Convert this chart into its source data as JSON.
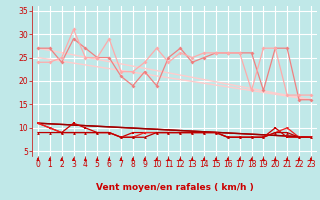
{
  "bg_color": "#c0e8e8",
  "grid_color": "#ffffff",
  "xlabel": "Vent moyen/en rafales ( km/h )",
  "xlim": [
    -0.5,
    23.5
  ],
  "ylim": [
    4,
    36
  ],
  "yticks": [
    5,
    10,
    15,
    20,
    25,
    30,
    35
  ],
  "xticks": [
    0,
    1,
    2,
    3,
    4,
    5,
    6,
    7,
    8,
    9,
    10,
    11,
    12,
    13,
    14,
    15,
    16,
    17,
    18,
    19,
    20,
    21,
    22,
    23
  ],
  "lines_light": [
    {
      "x": [
        0,
        1,
        2,
        3,
        4,
        5,
        6,
        7,
        8,
        9,
        10,
        11,
        12,
        13,
        14,
        15,
        16,
        17,
        18,
        19,
        20,
        21,
        22,
        23
      ],
      "y": [
        27,
        27,
        24,
        29,
        27,
        25,
        25,
        21,
        19,
        22,
        19,
        25,
        27,
        24,
        25,
        26,
        26,
        26,
        26,
        18,
        27,
        27,
        16,
        16
      ],
      "color": "#f08080",
      "lw": 0.9,
      "ms": 2.0
    },
    {
      "x": [
        0,
        1,
        2,
        3,
        4,
        5,
        6,
        7,
        8,
        9,
        10,
        11,
        12,
        13,
        14,
        15,
        16,
        17,
        18,
        19,
        20,
        21,
        22,
        23
      ],
      "y": [
        24,
        24,
        25,
        31,
        25,
        25,
        29,
        22,
        22,
        24,
        27,
        24,
        26,
        25,
        26,
        26,
        26,
        26,
        18,
        27,
        27,
        17,
        17,
        17
      ],
      "color": "#ffaaaa",
      "lw": 0.9,
      "ms": 2.0
    }
  ],
  "lines_diag_light": [
    {
      "x": [
        0,
        23
      ],
      "y": [
        27,
        16
      ],
      "color": "#ffcccc",
      "lw": 1.0
    },
    {
      "x": [
        0,
        23
      ],
      "y": [
        25,
        16
      ],
      "color": "#ffcccc",
      "lw": 1.0
    }
  ],
  "lines_dark": [
    {
      "x": [
        0,
        1,
        2,
        3,
        4,
        5,
        6,
        7,
        8,
        9,
        10,
        11,
        12,
        13,
        14,
        15,
        16,
        17,
        18,
        19,
        20,
        21,
        22,
        23
      ],
      "y": [
        11,
        10,
        9,
        11,
        10,
        9,
        9,
        8,
        9,
        9,
        9,
        9,
        9,
        9,
        9,
        9,
        8,
        8,
        8,
        8,
        10,
        8,
        8,
        8
      ],
      "color": "#cc0000",
      "lw": 0.9,
      "ms": 2.0,
      "marker": "s"
    },
    {
      "x": [
        0,
        1,
        2,
        3,
        4,
        5,
        6,
        7,
        8,
        9,
        10,
        11,
        12,
        13,
        14,
        15,
        16,
        17,
        18,
        19,
        20,
        21,
        22,
        23
      ],
      "y": [
        11,
        10,
        9,
        9,
        9,
        9,
        9,
        8,
        8,
        9,
        9,
        9,
        9,
        9,
        9,
        9,
        8,
        8,
        8,
        8,
        9,
        10,
        8,
        8
      ],
      "color": "#ee2222",
      "lw": 0.9,
      "ms": 2.0,
      "marker": "v"
    },
    {
      "x": [
        0,
        1,
        2,
        3,
        4,
        5,
        6,
        7,
        8,
        9,
        10,
        11,
        12,
        13,
        14,
        15,
        16,
        17,
        18,
        19,
        20,
        21,
        22,
        23
      ],
      "y": [
        9,
        9,
        9,
        9,
        9,
        9,
        9,
        8,
        8,
        8,
        9,
        9,
        9,
        9,
        9,
        9,
        8,
        8,
        8,
        8,
        9,
        9,
        8,
        8
      ],
      "color": "#bb0000",
      "lw": 0.9,
      "ms": 2.0,
      "marker": "^"
    }
  ],
  "lines_diag_dark": [
    {
      "x": [
        0,
        23
      ],
      "y": [
        11,
        8
      ],
      "color": "#cc0000",
      "lw": 1.0
    },
    {
      "x": [
        0,
        23
      ],
      "y": [
        11,
        8
      ],
      "color": "#990000",
      "lw": 1.0
    }
  ],
  "arrow_color": "#cc0000",
  "xlabel_color": "#cc0000",
  "xlabel_fontsize": 6.5,
  "tick_fontsize": 5.5,
  "tick_color": "#cc0000"
}
